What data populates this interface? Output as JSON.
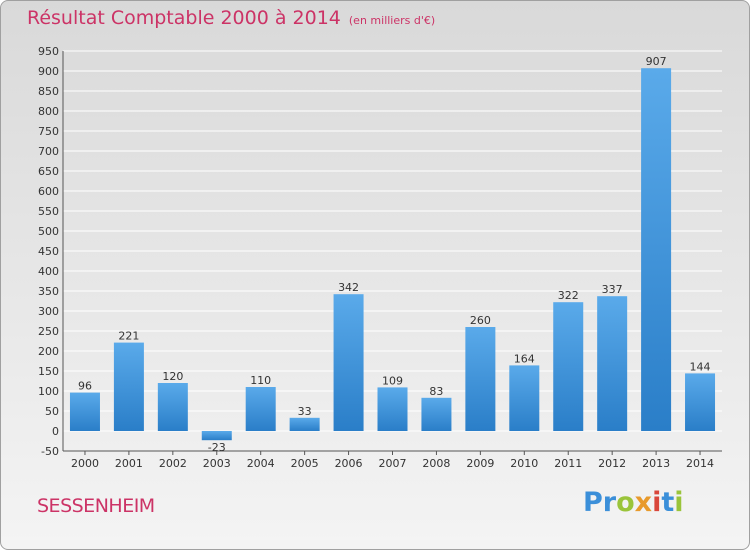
{
  "header": {
    "title": "Résultat Comptable 2000 à 2014",
    "subtitle": "(en milliers d'€)"
  },
  "footer": {
    "commune": "SESSENHEIM",
    "logo": [
      "Pr",
      "o",
      "x",
      "i",
      "t",
      "i"
    ]
  },
  "colors": {
    "bar_top": "#5aaaea",
    "bar_bottom": "#2a7ec8",
    "title": "#cc3366",
    "grid": "#ffffff"
  },
  "chart_data": {
    "type": "bar",
    "title": "Résultat Comptable 2000 à 2014",
    "subtitle": "(en milliers d'€)",
    "xlabel": "",
    "ylabel": "",
    "ylim": [
      -50,
      950
    ],
    "ytick_step": 50,
    "grid": true,
    "categories": [
      "2000",
      "2001",
      "2002",
      "2003",
      "2004",
      "2005",
      "2006",
      "2007",
      "2008",
      "2009",
      "2010",
      "2011",
      "2012",
      "2013",
      "2014"
    ],
    "values": [
      96,
      221,
      120,
      -23,
      110,
      33,
      342,
      109,
      83,
      260,
      164,
      322,
      337,
      907,
      144
    ],
    "value_labels": [
      "96",
      "221",
      "120",
      "-23",
      "110",
      "33",
      "342",
      "109",
      "83",
      "260",
      "164",
      "322",
      "337",
      "907",
      "144"
    ]
  }
}
